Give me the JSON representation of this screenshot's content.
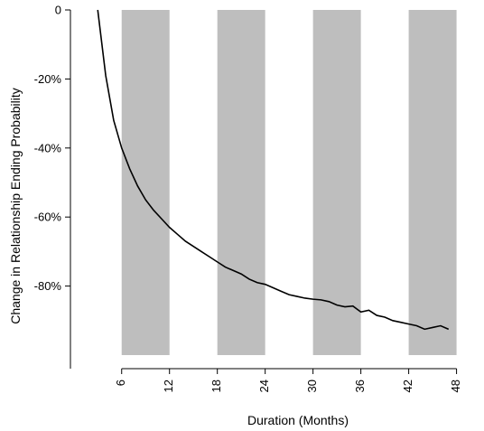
{
  "chart_data": {
    "type": "line",
    "xlabel": "Duration (Months)",
    "ylabel": "Change in Relationship Ending Probability",
    "xlim": [
      1.5,
      48.5
    ],
    "ylim": [
      -100,
      0
    ],
    "x_ticks": [
      6,
      12,
      18,
      24,
      30,
      36,
      42,
      48
    ],
    "x_tick_labels": [
      "6",
      "12",
      "18",
      "24",
      "30",
      "36",
      "42",
      "48"
    ],
    "y_ticks": [
      0,
      -20,
      -40,
      -60,
      -80
    ],
    "y_tick_labels": [
      "0",
      "-20%",
      "-40%",
      "-60%",
      "-80%"
    ],
    "grid": false,
    "shaded_bands": [
      {
        "x_start": 6,
        "x_end": 12,
        "y_start": 0,
        "y_end": -100,
        "color": "#bebebe"
      },
      {
        "x_start": 18,
        "x_end": 24,
        "y_start": 0,
        "y_end": -100,
        "color": "#bebebe"
      },
      {
        "x_start": 30,
        "x_end": 36,
        "y_start": 0,
        "y_end": -100,
        "color": "#bebebe"
      },
      {
        "x_start": 42,
        "x_end": 48,
        "y_start": 0,
        "y_end": -100,
        "color": "#bebebe"
      }
    ],
    "series": [
      {
        "color": "#000000",
        "x": [
          3,
          4,
          5,
          6,
          7,
          8,
          9,
          10,
          11,
          12,
          13,
          14,
          15,
          16,
          17,
          18,
          19,
          20,
          21,
          22,
          23,
          24,
          25,
          26,
          27,
          28,
          29,
          30,
          31,
          32,
          33,
          34,
          35,
          36,
          37,
          38,
          39,
          40,
          41,
          42,
          43,
          44,
          45,
          46,
          47
        ],
        "y": [
          0,
          -19,
          -32,
          -40,
          -46,
          -51,
          -55,
          -58,
          -60.5,
          -63,
          -65,
          -67,
          -68.5,
          -70,
          -71.5,
          -73,
          -74.5,
          -75.5,
          -76.5,
          -78,
          -79,
          -79.5,
          -80.5,
          -81.5,
          -82.5,
          -83,
          -83.5,
          -83.8,
          -84,
          -84.5,
          -85.5,
          -86,
          -85.8,
          -87.5,
          -87,
          -88.5,
          -89,
          -90,
          -90.5,
          -91,
          -91.5,
          -92.5,
          -92,
          -91.5,
          -92.5
        ]
      }
    ]
  }
}
